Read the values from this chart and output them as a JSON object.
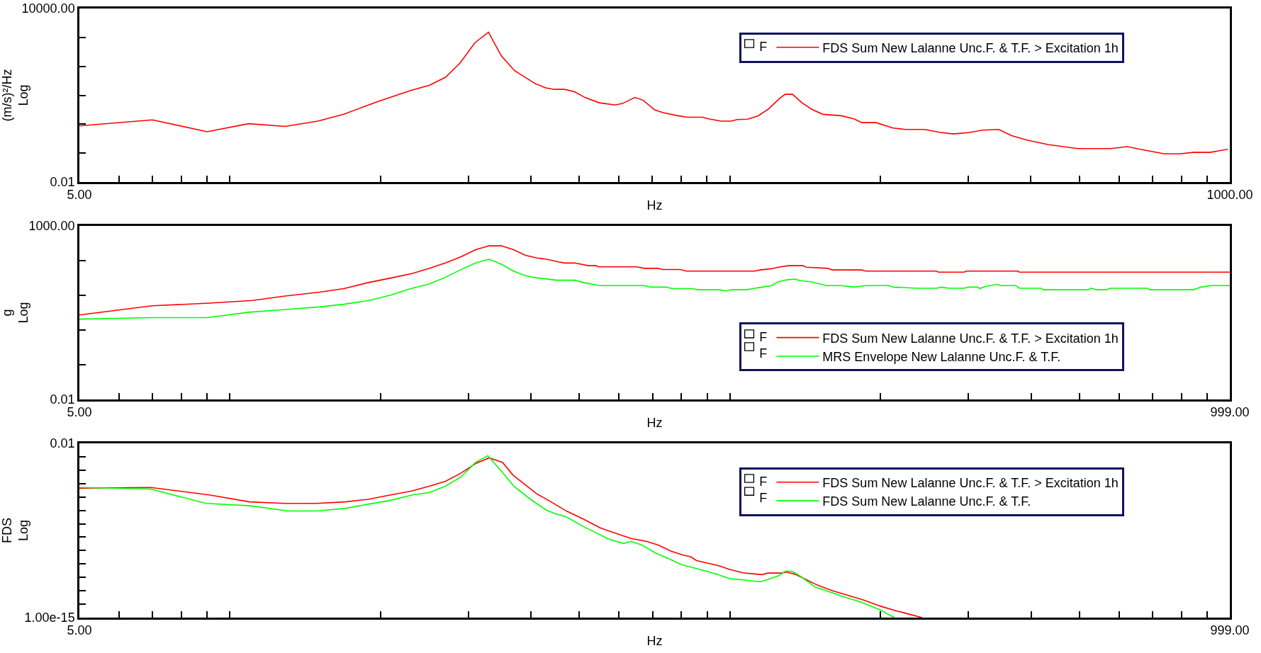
{
  "chart_data": [
    {
      "type": "line",
      "xlabel": "Hz",
      "ylabel": "(m/s)²/Hz\nLog",
      "log": "xy",
      "legend": "top right",
      "line_style": "solid",
      "xlim": [
        5,
        1000
      ],
      "ylim": [
        0.01,
        10000
      ],
      "xticks": [
        {
          "value": 5,
          "label": "5.00"
        },
        {
          "value": 6,
          "label": null
        },
        {
          "value": 7,
          "label": null
        },
        {
          "value": 8,
          "label": null
        },
        {
          "value": 9,
          "label": null
        },
        {
          "value": 10,
          "label": null
        },
        {
          "value": 20,
          "label": null
        },
        {
          "value": 30,
          "label": null
        },
        {
          "value": 40,
          "label": null
        },
        {
          "value": 50,
          "label": null
        },
        {
          "value": 60,
          "label": null
        },
        {
          "value": 70,
          "label": null
        },
        {
          "value": 80,
          "label": null
        },
        {
          "value": 90,
          "label": null
        },
        {
          "value": 100,
          "label": null
        },
        {
          "value": 200,
          "label": null
        },
        {
          "value": 300,
          "label": null
        },
        {
          "value": 400,
          "label": null
        },
        {
          "value": 500,
          "label": null
        },
        {
          "value": 600,
          "label": null
        },
        {
          "value": 700,
          "label": null
        },
        {
          "value": 800,
          "label": null
        },
        {
          "value": 900,
          "label": null
        },
        {
          "value": 1000,
          "label": "1000.00"
        }
      ],
      "yticks": [
        {
          "value": 0.01,
          "label": "0.01"
        },
        {
          "value": 0.1,
          "label": null
        },
        {
          "value": 1,
          "label": null
        },
        {
          "value": 10,
          "label": null
        },
        {
          "value": 100,
          "label": null
        },
        {
          "value": 1000,
          "label": null
        },
        {
          "value": 10000,
          "label": "10000.00"
        }
      ],
      "annotations": [
        "F"
      ],
      "series": [
        {
          "name": "FDS Sum New Lalanne Unc.F. & T.F. > Excitation 1h",
          "color": "#ff0000",
          "x": [
            5.0,
            7.0,
            9.0,
            10.9,
            12.9,
            15.0,
            16.9,
            19.7,
            23.0,
            25.1,
            27.0,
            28.9,
            30.9,
            32.9,
            34.9,
            37.1,
            40.8,
            42.8,
            44.5,
            46.7,
            48.9,
            51.3,
            54.8,
            59.0,
            61.0,
            64.6,
            67.0,
            70.8,
            73.5,
            78.6,
            82.4,
            88.1,
            90.6,
            95.9,
            100.7,
            103.5,
            108.6,
            114,
            119.6,
            125.4,
            129,
            133.4,
            139.4,
            146.2,
            153.4,
            167,
            177,
            183.7,
            196,
            212,
            224,
            245,
            264,
            280,
            302,
            320,
            345,
            366,
            394,
            434,
            496,
            578,
            624,
            661,
            741,
            792,
            847,
            914,
            950,
            991
          ],
          "values": [
            0.87,
            1.41,
            0.55,
            1.04,
            0.84,
            1.28,
            2.22,
            5.9,
            14.6,
            22.3,
            42,
            134,
            650,
            1520,
            231,
            71,
            25.2,
            18.0,
            16.0,
            16.0,
            13.3,
            8.4,
            5.5,
            4.6,
            5.2,
            8.4,
            6.8,
            3.1,
            2.5,
            1.96,
            1.74,
            1.74,
            1.54,
            1.28,
            1.28,
            1.45,
            1.49,
            1.96,
            3.4,
            7.5,
            10.8,
            10.8,
            5.5,
            3.2,
            2.2,
            1.96,
            1.54,
            1.13,
            1.13,
            0.74,
            0.66,
            0.66,
            0.52,
            0.46,
            0.52,
            0.62,
            0.66,
            0.4,
            0.28,
            0.195,
            0.144,
            0.144,
            0.168,
            0.136,
            0.094,
            0.094,
            0.106,
            0.106,
            0.12,
            0.136
          ]
        }
      ]
    },
    {
      "type": "line",
      "xlabel": "Hz",
      "ylabel": "g\nLog",
      "log": "xy",
      "legend": "bottom right",
      "line_style": "solid",
      "xlim": [
        5,
        999
      ],
      "ylim": [
        0.01,
        1000
      ],
      "xticks": [
        {
          "value": 5,
          "label": "5.00"
        },
        {
          "value": 6,
          "label": null
        },
        {
          "value": 7,
          "label": null
        },
        {
          "value": 8,
          "label": null
        },
        {
          "value": 9,
          "label": null
        },
        {
          "value": 10,
          "label": null
        },
        {
          "value": 20,
          "label": null
        },
        {
          "value": 30,
          "label": null
        },
        {
          "value": 40,
          "label": null
        },
        {
          "value": 50,
          "label": null
        },
        {
          "value": 60,
          "label": null
        },
        {
          "value": 70,
          "label": null
        },
        {
          "value": 80,
          "label": null
        },
        {
          "value": 90,
          "label": null
        },
        {
          "value": 100,
          "label": null
        },
        {
          "value": 200,
          "label": null
        },
        {
          "value": 300,
          "label": null
        },
        {
          "value": 400,
          "label": null
        },
        {
          "value": 500,
          "label": null
        },
        {
          "value": 600,
          "label": null
        },
        {
          "value": 700,
          "label": null
        },
        {
          "value": 800,
          "label": null
        },
        {
          "value": 900,
          "label": null
        },
        {
          "value": 999,
          "label": "999.00"
        }
      ],
      "yticks": [
        {
          "value": 0.01,
          "label": "0.01"
        },
        {
          "value": 0.1,
          "label": null
        },
        {
          "value": 1,
          "label": null
        },
        {
          "value": 10,
          "label": null
        },
        {
          "value": 100,
          "label": null
        },
        {
          "value": 1000,
          "label": "1000.00"
        }
      ],
      "annotations": [
        "F",
        "F"
      ],
      "series": [
        {
          "name": "FDS Sum New Lalanne Unc.F. & T.F. > Excitation 1h",
          "color": "#ff0000",
          "x": [
            5.0,
            6.98,
            9.09,
            11.1,
            12.8,
            15.1,
            16.9,
            18.8,
            21.2,
            23.2,
            25.2,
            27.1,
            29.1,
            31.0,
            33.0,
            34.9,
            36.9,
            39.0,
            41.1,
            43.0,
            45.4,
            46.7,
            48.9,
            52.1,
            54.0,
            54.5,
            58.4,
            65.1,
            67.5,
            71.9,
            73.2,
            79.5,
            81.7,
            112,
            115,
            121,
            125,
            131,
            140,
            142,
            157,
            160,
            183,
            187,
            259,
            261,
            294,
            297,
            376,
            379,
            999
          ],
          "values": [
            2.72,
            4.99,
            5.96,
            7.1,
            9.4,
            12.4,
            15.6,
            22.9,
            32.6,
            43,
            61.5,
            88,
            132,
            208,
            267,
            267,
            208,
            142,
            119,
            110,
            92,
            85.5,
            85.5,
            71.6,
            71.6,
            66.4,
            66.4,
            66.4,
            60,
            60,
            55.5,
            55.5,
            50.1,
            50.1,
            54,
            58.5,
            64.7,
            71.6,
            71.6,
            64.7,
            60,
            54,
            54,
            50.1,
            50.1,
            46.5,
            46.5,
            50.1,
            50.1,
            46.5,
            46.5
          ]
        },
        {
          "name": "MRS Envelope New Lalanne Unc.F. & T.F.",
          "color": "#00ff00",
          "x": [
            5.0,
            6.98,
            9.0,
            10.9,
            12.8,
            15.1,
            16.9,
            19.0,
            21.0,
            23.0,
            24.9,
            26.8,
            28.8,
            31.0,
            33.0,
            34.9,
            36.9,
            39.0,
            41.1,
            45.0,
            48.9,
            51.2,
            55.0,
            58.4,
            67.5,
            69.3,
            74.6,
            76.6,
            84,
            86.3,
            95.3,
            98,
            100.7,
            108,
            111,
            116,
            121,
            125,
            130,
            135,
            138,
            145,
            156,
            167,
            177,
            187,
            208,
            212,
            237,
            259,
            264,
            274,
            294,
            300,
            313,
            316,
            322,
            331,
            343,
            347,
            373,
            379,
            419,
            423,
            522,
            526,
            541,
            566,
            577,
            685,
            691,
            845,
            876,
            917,
            999
          ],
          "values": [
            2.06,
            2.28,
            2.28,
            3.25,
            3.87,
            4.63,
            5.52,
            7.1,
            10.2,
            15.6,
            20.7,
            31.8,
            52.7,
            85.5,
            110,
            79.2,
            50.1,
            37,
            31.8,
            27.3,
            27.3,
            22.9,
            19.1,
            19.1,
            19.1,
            17.3,
            17.3,
            15.6,
            15.6,
            14.5,
            14.5,
            13.4,
            14.5,
            14.5,
            15.6,
            17.3,
            19.1,
            24.7,
            28,
            29.4,
            26.6,
            24.7,
            19.1,
            19.1,
            17.3,
            19.1,
            19.1,
            17.3,
            16,
            16,
            17.3,
            16,
            16,
            17.3,
            17.3,
            15.6,
            17.3,
            19.1,
            20.7,
            19.1,
            19.1,
            16,
            16,
            14.5,
            14.5,
            16,
            14.5,
            14.5,
            16,
            16,
            14.5,
            14.5,
            17.3,
            19.1,
            19.1
          ]
        }
      ]
    },
    {
      "type": "line",
      "xlabel": "Hz",
      "ylabel": "FDS\nLog",
      "log": "xy",
      "legend": "top right",
      "line_style": "solid",
      "xlim": [
        5,
        999
      ],
      "ylim": [
        1e-15,
        0.01
      ],
      "xticks": [
        {
          "value": 5,
          "label": "5.00"
        },
        {
          "value": 6,
          "label": null
        },
        {
          "value": 7,
          "label": null
        },
        {
          "value": 8,
          "label": null
        },
        {
          "value": 9,
          "label": null
        },
        {
          "value": 10,
          "label": null
        },
        {
          "value": 20,
          "label": null
        },
        {
          "value": 30,
          "label": null
        },
        {
          "value": 40,
          "label": null
        },
        {
          "value": 50,
          "label": null
        },
        {
          "value": 60,
          "label": null
        },
        {
          "value": 70,
          "label": null
        },
        {
          "value": 80,
          "label": null
        },
        {
          "value": 90,
          "label": null
        },
        {
          "value": 100,
          "label": null
        },
        {
          "value": 200,
          "label": null
        },
        {
          "value": 300,
          "label": null
        },
        {
          "value": 400,
          "label": null
        },
        {
          "value": 500,
          "label": null
        },
        {
          "value": 600,
          "label": null
        },
        {
          "value": 700,
          "label": null
        },
        {
          "value": 800,
          "label": null
        },
        {
          "value": 900,
          "label": null
        },
        {
          "value": 999,
          "label": "999.00"
        }
      ],
      "yticks": [
        {
          "value": 1e-15,
          "label": "1.00e-15"
        },
        {
          "value": 1e-14,
          "label": null
        },
        {
          "value": 1e-13,
          "label": null
        },
        {
          "value": 1e-12,
          "label": null
        },
        {
          "value": 1e-11,
          "label": null
        },
        {
          "value": 1e-10,
          "label": null
        },
        {
          "value": 1e-09,
          "label": null
        },
        {
          "value": 1e-08,
          "label": null
        },
        {
          "value": 1e-07,
          "label": null
        },
        {
          "value": 1e-06,
          "label": null
        },
        {
          "value": 1e-05,
          "label": null
        },
        {
          "value": 0.0001,
          "label": null
        },
        {
          "value": 0.001,
          "label": null
        },
        {
          "value": 0.01,
          "label": "0.01"
        }
      ],
      "annotations": [
        "F",
        "F"
      ],
      "series": [
        {
          "name": "FDS Sum New Lalanne Unc.F. & T.F. > Excitation 1h",
          "color": "#ff0000",
          "x": [
            5.0,
            6.94,
            9.13,
            10.95,
            12.9,
            14.9,
            17.0,
            18.9,
            20.9,
            23.1,
            25.1,
            27.0,
            29.0,
            31.0,
            33.0,
            35.1,
            36.8,
            41.1,
            43.4,
            47.1,
            50.7,
            55.0,
            58.1,
            63.4,
            68.2,
            72.0,
            76.1,
            80.4,
            83.4,
            85.7,
            94.7,
            99.1,
            106,
            112,
            116,
            119,
            127,
            130,
            135,
            141,
            147,
            152,
            161,
            173,
            186,
            200,
            215,
            231,
            242
          ],
          "values": [
            4.5e-06,
            5.1e-06,
            1.4e-06,
            4.3e-07,
            3.3e-07,
            3.3e-07,
            4.3e-07,
            6.7e-07,
            1.4e-06,
            2.8e-06,
            6.6e-06,
            1.5e-05,
            6.1e-05,
            0.00031,
            0.00083,
            0.00038,
            4.4e-05,
            1.7e-06,
            5.5e-07,
            8.9e-08,
            2.4e-08,
            5e-09,
            2.4e-09,
            8e-10,
            4.8e-10,
            2.5e-10,
            9.3e-11,
            4.8e-11,
            3.5e-11,
            1.8e-11,
            7.7e-12,
            4.3e-12,
            2.2e-12,
            1.8e-12,
            1.6e-12,
            2.1e-12,
            2.1e-12,
            2.5e-12,
            1.7e-12,
            7.9e-13,
            3.6e-13,
            2.1e-13,
            9.7e-14,
            4.4e-14,
            1.9e-14,
            7.1e-15,
            3.2e-15,
            1.6e-15,
            1e-15
          ]
        },
        {
          "name": "FDS Sum New Lalanne Unc.F. & T.F.",
          "color": "#00ff00",
          "x": [
            5.0,
            6.94,
            8.96,
            10.95,
            13.1,
            14.9,
            17.0,
            18.9,
            20.9,
            23.1,
            25.1,
            27.0,
            29.0,
            31.0,
            32.8,
            34.9,
            37.0,
            40.0,
            43.0,
            45.0,
            47.1,
            51.1,
            54.5,
            57.0,
            61.2,
            63.4,
            66.4,
            71.4,
            75.4,
            79.6,
            88.1,
            93.9,
            100,
            108,
            115,
            119,
            125,
            129,
            133,
            138,
            144,
            148,
            158,
            167,
            183,
            200,
            213
          ],
          "values": [
            5.1e-06,
            3.9e-06,
            3.3e-07,
            2.2e-07,
            8.9e-08,
            8.9e-08,
            1.4e-07,
            2.9e-07,
            5.5e-07,
            1.4e-06,
            2.2e-06,
            6.6e-06,
            3.2e-05,
            0.00038,
            0.0012,
            8.5e-05,
            6.2e-06,
            6.3e-07,
            1e-07,
            5.2e-08,
            3.3e-08,
            5.7e-09,
            1.8e-09,
            7.5e-10,
            3.4e-10,
            4.8e-10,
            2.8e-10,
            5.9e-11,
            2.5e-11,
            9.4e-12,
            3.5e-12,
            1.8e-12,
            7.9e-13,
            6.1e-13,
            4.7e-13,
            6.9e-13,
            1.3e-12,
            2.9e-12,
            2.9e-12,
            1.3e-12,
            4.1e-13,
            1.9e-13,
            8.5e-14,
            4.1e-14,
            1.4e-14,
            3.7e-15,
            1e-15
          ]
        }
      ]
    }
  ]
}
